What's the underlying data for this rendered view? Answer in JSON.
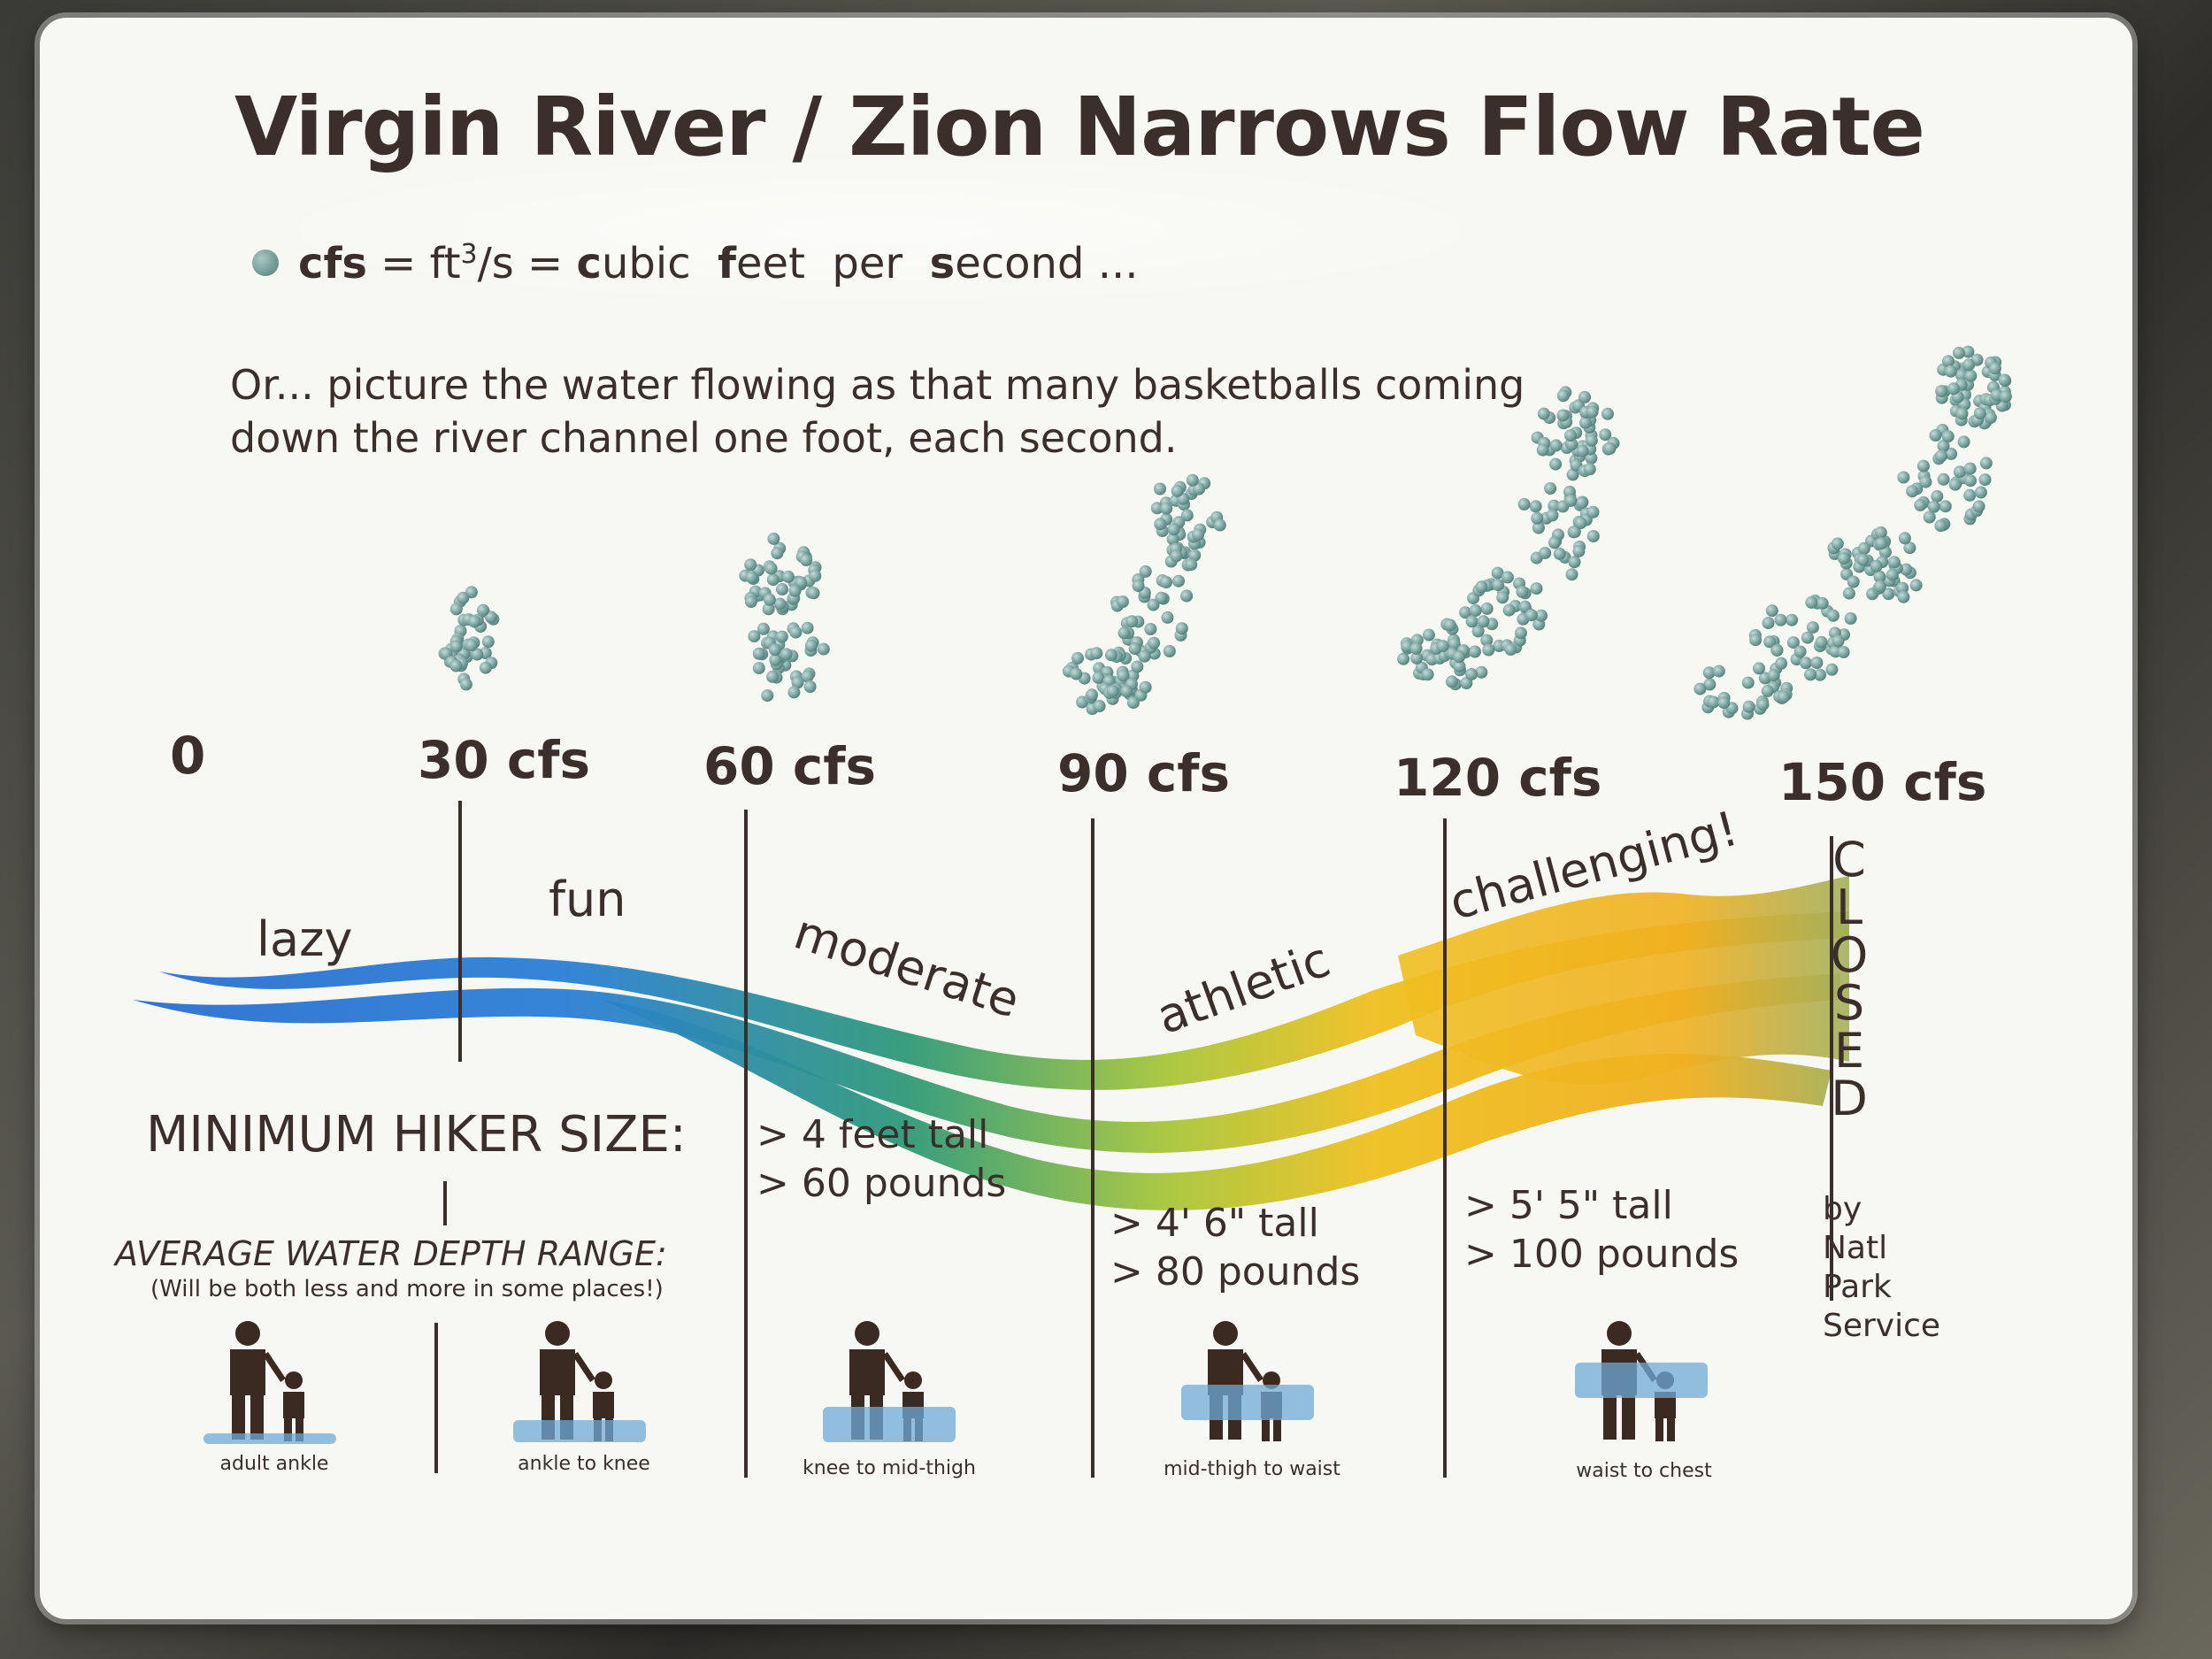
{
  "title": "Virgin River / Zion Narrows Flow Rate",
  "definition": {
    "term": "cfs",
    "equation_prefix": " = ft",
    "equation_exp": "3",
    "equation_mid": "/s = ",
    "c_bold": "c",
    "ubic": "ubic  ",
    "f_bold": "f",
    "eet": "eet  per  ",
    "s_bold": "s",
    "econd": "econd ..."
  },
  "intro": "Or... picture the water flowing as that many basketballs coming down the river channel one foot, each second.",
  "scale": [
    "0",
    "30 cfs",
    "60 cfs",
    "90 cfs",
    "120 cfs",
    "150 cfs"
  ],
  "stages": [
    "lazy",
    "fun",
    "moderate",
    "athletic",
    "challenging!"
  ],
  "minimum_hiker_label": "MINIMUM HIKER SIZE:",
  "requirements": [
    {
      "line1": "> 4 feet tall",
      "line2": "> 60 pounds"
    },
    {
      "line1": "> 4' 6\" tall",
      "line2": "> 80 pounds"
    },
    {
      "line1": "> 5' 5\" tall",
      "line2": "> 100 pounds"
    }
  ],
  "depth_heading": "AVERAGE WATER DEPTH RANGE:",
  "depth_note": "(Will be both less and more in some places!)",
  "depths": [
    "adult ankle",
    "ankle to knee",
    "knee to mid-thigh",
    "mid-thigh to waist",
    "waist to chest"
  ],
  "closed_letters": [
    "C",
    "L",
    "O",
    "S",
    "E",
    "D"
  ],
  "closed_by": [
    "by",
    "Natl",
    "Park",
    "Service"
  ],
  "colors": {
    "text": "#3b2f2b",
    "ball": "#5f8f8a",
    "water_start": "#2a6fd0",
    "water_mid": "#3aa05a",
    "water_end": "#f0b020",
    "figure": "#3b2a22",
    "water_band": "#6fa9d8"
  }
}
